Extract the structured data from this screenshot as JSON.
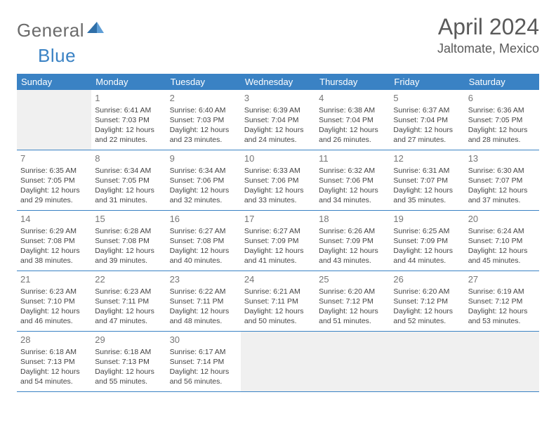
{
  "logo": {
    "text1": "General",
    "text2": "Blue"
  },
  "title": "April 2024",
  "location": "Jaltomate, Mexico",
  "colors": {
    "header_bg": "#3a82c4",
    "header_text": "#ffffff",
    "logo_gray": "#6b6b6b",
    "logo_blue": "#3a82c4",
    "title_color": "#5a5a5a",
    "body_text": "#444444",
    "daynum_color": "#777777",
    "empty_bg": "#f0f0f0",
    "border": "#3a82c4",
    "page_bg": "#ffffff"
  },
  "fonts": {
    "family": "Arial",
    "title_size": 32,
    "location_size": 18,
    "weekday_size": 13,
    "daynum_size": 13,
    "body_size": 10.5
  },
  "weekdays": [
    "Sunday",
    "Monday",
    "Tuesday",
    "Wednesday",
    "Thursday",
    "Friday",
    "Saturday"
  ],
  "weeks": [
    [
      {
        "empty": true
      },
      {
        "num": "1",
        "sunrise": "Sunrise: 6:41 AM",
        "sunset": "Sunset: 7:03 PM",
        "daylight": "Daylight: 12 hours and 22 minutes."
      },
      {
        "num": "2",
        "sunrise": "Sunrise: 6:40 AM",
        "sunset": "Sunset: 7:03 PM",
        "daylight": "Daylight: 12 hours and 23 minutes."
      },
      {
        "num": "3",
        "sunrise": "Sunrise: 6:39 AM",
        "sunset": "Sunset: 7:04 PM",
        "daylight": "Daylight: 12 hours and 24 minutes."
      },
      {
        "num": "4",
        "sunrise": "Sunrise: 6:38 AM",
        "sunset": "Sunset: 7:04 PM",
        "daylight": "Daylight: 12 hours and 26 minutes."
      },
      {
        "num": "5",
        "sunrise": "Sunrise: 6:37 AM",
        "sunset": "Sunset: 7:04 PM",
        "daylight": "Daylight: 12 hours and 27 minutes."
      },
      {
        "num": "6",
        "sunrise": "Sunrise: 6:36 AM",
        "sunset": "Sunset: 7:05 PM",
        "daylight": "Daylight: 12 hours and 28 minutes."
      }
    ],
    [
      {
        "num": "7",
        "sunrise": "Sunrise: 6:35 AM",
        "sunset": "Sunset: 7:05 PM",
        "daylight": "Daylight: 12 hours and 29 minutes."
      },
      {
        "num": "8",
        "sunrise": "Sunrise: 6:34 AM",
        "sunset": "Sunset: 7:05 PM",
        "daylight": "Daylight: 12 hours and 31 minutes."
      },
      {
        "num": "9",
        "sunrise": "Sunrise: 6:34 AM",
        "sunset": "Sunset: 7:06 PM",
        "daylight": "Daylight: 12 hours and 32 minutes."
      },
      {
        "num": "10",
        "sunrise": "Sunrise: 6:33 AM",
        "sunset": "Sunset: 7:06 PM",
        "daylight": "Daylight: 12 hours and 33 minutes."
      },
      {
        "num": "11",
        "sunrise": "Sunrise: 6:32 AM",
        "sunset": "Sunset: 7:06 PM",
        "daylight": "Daylight: 12 hours and 34 minutes."
      },
      {
        "num": "12",
        "sunrise": "Sunrise: 6:31 AM",
        "sunset": "Sunset: 7:07 PM",
        "daylight": "Daylight: 12 hours and 35 minutes."
      },
      {
        "num": "13",
        "sunrise": "Sunrise: 6:30 AM",
        "sunset": "Sunset: 7:07 PM",
        "daylight": "Daylight: 12 hours and 37 minutes."
      }
    ],
    [
      {
        "num": "14",
        "sunrise": "Sunrise: 6:29 AM",
        "sunset": "Sunset: 7:08 PM",
        "daylight": "Daylight: 12 hours and 38 minutes."
      },
      {
        "num": "15",
        "sunrise": "Sunrise: 6:28 AM",
        "sunset": "Sunset: 7:08 PM",
        "daylight": "Daylight: 12 hours and 39 minutes."
      },
      {
        "num": "16",
        "sunrise": "Sunrise: 6:27 AM",
        "sunset": "Sunset: 7:08 PM",
        "daylight": "Daylight: 12 hours and 40 minutes."
      },
      {
        "num": "17",
        "sunrise": "Sunrise: 6:27 AM",
        "sunset": "Sunset: 7:09 PM",
        "daylight": "Daylight: 12 hours and 41 minutes."
      },
      {
        "num": "18",
        "sunrise": "Sunrise: 6:26 AM",
        "sunset": "Sunset: 7:09 PM",
        "daylight": "Daylight: 12 hours and 43 minutes."
      },
      {
        "num": "19",
        "sunrise": "Sunrise: 6:25 AM",
        "sunset": "Sunset: 7:09 PM",
        "daylight": "Daylight: 12 hours and 44 minutes."
      },
      {
        "num": "20",
        "sunrise": "Sunrise: 6:24 AM",
        "sunset": "Sunset: 7:10 PM",
        "daylight": "Daylight: 12 hours and 45 minutes."
      }
    ],
    [
      {
        "num": "21",
        "sunrise": "Sunrise: 6:23 AM",
        "sunset": "Sunset: 7:10 PM",
        "daylight": "Daylight: 12 hours and 46 minutes."
      },
      {
        "num": "22",
        "sunrise": "Sunrise: 6:23 AM",
        "sunset": "Sunset: 7:11 PM",
        "daylight": "Daylight: 12 hours and 47 minutes."
      },
      {
        "num": "23",
        "sunrise": "Sunrise: 6:22 AM",
        "sunset": "Sunset: 7:11 PM",
        "daylight": "Daylight: 12 hours and 48 minutes."
      },
      {
        "num": "24",
        "sunrise": "Sunrise: 6:21 AM",
        "sunset": "Sunset: 7:11 PM",
        "daylight": "Daylight: 12 hours and 50 minutes."
      },
      {
        "num": "25",
        "sunrise": "Sunrise: 6:20 AM",
        "sunset": "Sunset: 7:12 PM",
        "daylight": "Daylight: 12 hours and 51 minutes."
      },
      {
        "num": "26",
        "sunrise": "Sunrise: 6:20 AM",
        "sunset": "Sunset: 7:12 PM",
        "daylight": "Daylight: 12 hours and 52 minutes."
      },
      {
        "num": "27",
        "sunrise": "Sunrise: 6:19 AM",
        "sunset": "Sunset: 7:12 PM",
        "daylight": "Daylight: 12 hours and 53 minutes."
      }
    ],
    [
      {
        "num": "28",
        "sunrise": "Sunrise: 6:18 AM",
        "sunset": "Sunset: 7:13 PM",
        "daylight": "Daylight: 12 hours and 54 minutes."
      },
      {
        "num": "29",
        "sunrise": "Sunrise: 6:18 AM",
        "sunset": "Sunset: 7:13 PM",
        "daylight": "Daylight: 12 hours and 55 minutes."
      },
      {
        "num": "30",
        "sunrise": "Sunrise: 6:17 AM",
        "sunset": "Sunset: 7:14 PM",
        "daylight": "Daylight: 12 hours and 56 minutes."
      },
      {
        "empty": true
      },
      {
        "empty": true
      },
      {
        "empty": true
      },
      {
        "empty": true
      }
    ]
  ]
}
